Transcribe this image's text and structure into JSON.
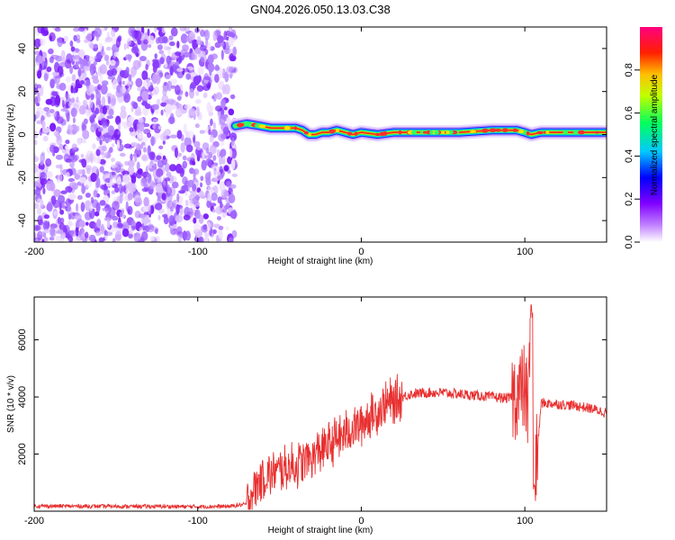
{
  "title": "GN04.2026.050.13.03.C38",
  "chart_data": [
    {
      "type": "heatmap",
      "name": "spectrogram",
      "title": "GN04.2026.050.13.03.C38",
      "xlabel": "Height of straight line (km)",
      "ylabel": "Frequency (Hz)",
      "xlim": [
        -200,
        150
      ],
      "ylim": [
        -50,
        50
      ],
      "x_ticks": [
        -200,
        -100,
        0,
        100
      ],
      "y_ticks": [
        -40,
        -20,
        0,
        20,
        40
      ],
      "noise_region_x": [
        -200,
        -77
      ],
      "signal_start_x": -77,
      "signal_line": {
        "x": [
          -77,
          -70,
          -62,
          -55,
          -48,
          -40,
          -36,
          -32,
          -28,
          -24,
          -20,
          -15,
          -10,
          -5,
          0,
          10,
          20,
          40,
          60,
          80,
          95,
          100,
          104,
          110,
          120,
          150
        ],
        "y": [
          4,
          5,
          4,
          3,
          3,
          3,
          2,
          0,
          0,
          1,
          1,
          2,
          1,
          0,
          1,
          0,
          1,
          1,
          1,
          2,
          2,
          1,
          0,
          1,
          1,
          1
        ]
      },
      "colorbar": {
        "label": "Normalized spectral amplitude",
        "ticks": [
          0.0,
          0.2,
          0.4,
          0.6,
          0.8
        ],
        "range": [
          0,
          1
        ],
        "colormap": [
          "#ffffff",
          "#8a00ff",
          "#0000ff",
          "#00e0ff",
          "#00ff40",
          "#ffff00",
          "#ff8000",
          "#ff0000",
          "#ff0080"
        ]
      }
    },
    {
      "type": "line",
      "name": "snr",
      "xlabel": "Height of straight line (km)",
      "ylabel": "SNR (10 * v/v)",
      "xlim": [
        -200,
        150
      ],
      "ylim": [
        0,
        7500
      ],
      "x_ticks": [
        -200,
        -100,
        0,
        100
      ],
      "y_ticks": [
        2000,
        4000,
        6000
      ],
      "color": "#e83030",
      "series": [
        {
          "name": "SNR",
          "x": [
            -200,
            -150,
            -100,
            -80,
            -70,
            -65,
            -60,
            -50,
            -40,
            -30,
            -20,
            -10,
            0,
            10,
            20,
            30,
            40,
            50,
            60,
            70,
            80,
            90,
            95,
            100,
            102,
            104,
            106,
            110,
            120,
            130,
            140,
            150
          ],
          "y": [
            180,
            170,
            160,
            170,
            250,
            900,
            1200,
            1400,
            1600,
            1900,
            2300,
            2700,
            3100,
            3500,
            3900,
            4100,
            4150,
            4150,
            4100,
            4050,
            4000,
            3950,
            4100,
            4300,
            3500,
            7300,
            900,
            3800,
            3750,
            3700,
            3600,
            3450
          ]
        }
      ]
    }
  ]
}
